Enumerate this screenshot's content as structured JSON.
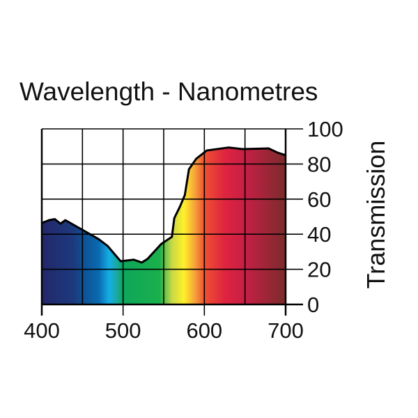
{
  "chart_data": {
    "type": "area",
    "title": "Wavelength - Nanometres",
    "xlabel": "Wavelength - Nanometres",
    "ylabel": "Transmission",
    "xlim": [
      400,
      700
    ],
    "ylim": [
      0,
      100
    ],
    "xticks": [
      400,
      500,
      600,
      700
    ],
    "xgrid": [
      400,
      450,
      500,
      550,
      600,
      650,
      700
    ],
    "yticks": [
      0,
      20,
      40,
      60,
      80,
      100
    ],
    "grid": true,
    "fill": "visible spectrum gradient",
    "x": [
      400,
      409,
      416,
      423,
      429,
      450,
      470,
      481,
      497,
      513,
      523,
      530,
      547,
      560,
      563,
      570,
      576,
      581,
      590,
      603,
      630,
      647,
      679,
      690,
      700
    ],
    "y": [
      46.4,
      48,
      48.6,
      46,
      48,
      42.5,
      37.2,
      33.3,
      24.6,
      25.5,
      23.9,
      25.9,
      34.5,
      38.5,
      49.2,
      55.7,
      62.3,
      77,
      83,
      87.7,
      89.4,
      88.5,
      88.9,
      86.5,
      85
    ],
    "spectrum_stops": [
      {
        "nm": 400,
        "color": "#23276a"
      },
      {
        "nm": 440,
        "color": "#1d3a7e"
      },
      {
        "nm": 450,
        "color": "#0f4f93"
      },
      {
        "nm": 470,
        "color": "#0a6ab0"
      },
      {
        "nm": 483,
        "color": "#15aee6"
      },
      {
        "nm": 493,
        "color": "#1aa89a"
      },
      {
        "nm": 500,
        "color": "#0ea65a"
      },
      {
        "nm": 545,
        "color": "#1ab04c"
      },
      {
        "nm": 560,
        "color": "#c8d846"
      },
      {
        "nm": 575,
        "color": "#fff02a"
      },
      {
        "nm": 588,
        "color": "#f6a43a"
      },
      {
        "nm": 600,
        "color": "#ef5132"
      },
      {
        "nm": 625,
        "color": "#df2440"
      },
      {
        "nm": 650,
        "color": "#c61f45"
      },
      {
        "nm": 700,
        "color": "#7a2c2c"
      }
    ]
  }
}
